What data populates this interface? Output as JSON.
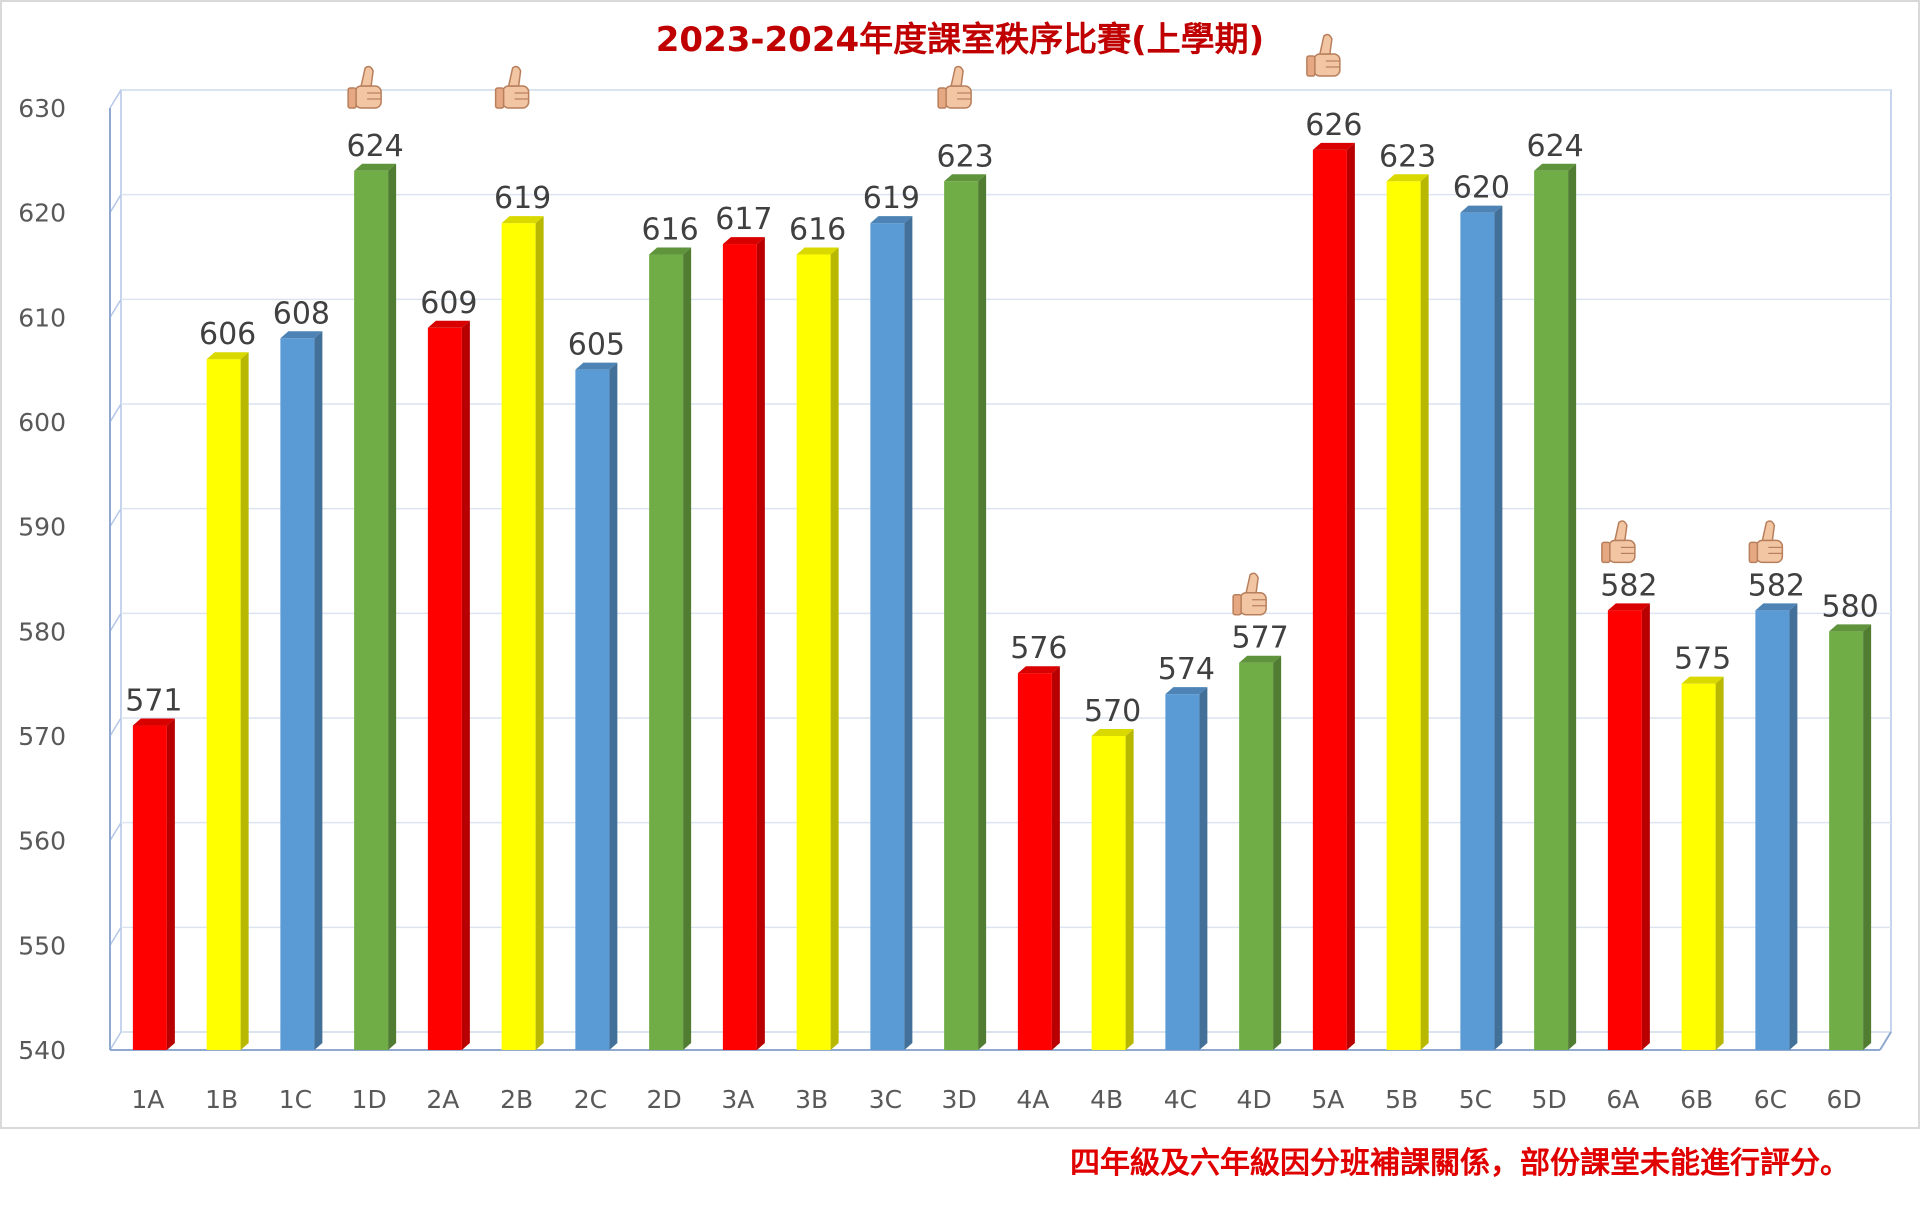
{
  "chart_data": {
    "type": "bar",
    "title": "2023-2024年度課室秩序比賽(上學期)",
    "categories": [
      "1A",
      "1B",
      "1C",
      "1D",
      "2A",
      "2B",
      "2C",
      "2D",
      "3A",
      "3B",
      "3C",
      "3D",
      "4A",
      "4B",
      "4C",
      "4D",
      "5A",
      "5B",
      "5C",
      "5D",
      "6A",
      "6B",
      "6C",
      "6D"
    ],
    "values": [
      571,
      606,
      608,
      624,
      609,
      619,
      605,
      616,
      617,
      616,
      619,
      623,
      576,
      570,
      574,
      577,
      626,
      623,
      620,
      624,
      582,
      575,
      582,
      580
    ],
    "bar_colors": [
      "#ff0000",
      "#ffff00",
      "#5b9bd5",
      "#70ad47"
    ],
    "ylim": [
      540,
      630
    ],
    "yticks": [
      540,
      550,
      560,
      570,
      580,
      590,
      600,
      610,
      620,
      630
    ],
    "grid": true,
    "thumbs_up": [
      "1D",
      "2B",
      "3D",
      "4D",
      "5A",
      "6A",
      "6C"
    ]
  },
  "note": "四年級及六年級因分班補課關係，部份課堂未能進行評分。"
}
